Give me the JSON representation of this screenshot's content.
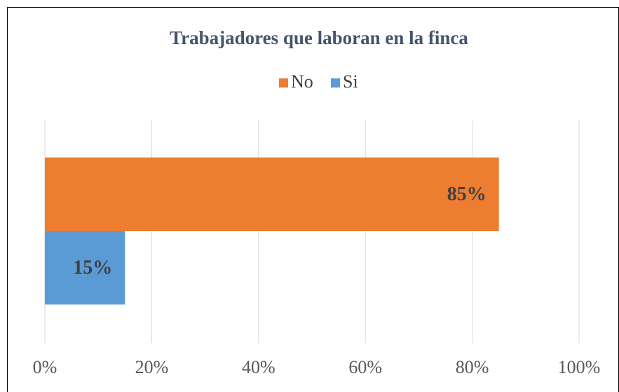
{
  "chart_data": {
    "type": "bar",
    "orientation": "horizontal",
    "title": "Trabajadores que laboran en la finca",
    "categories": [
      null
    ],
    "series": [
      {
        "name": "No",
        "color": "#ed7d31",
        "values": [
          85
        ],
        "value_labels": [
          "85%"
        ]
      },
      {
        "name": "Si",
        "color": "#5b9bd5",
        "values": [
          15
        ],
        "value_labels": [
          "15%"
        ]
      }
    ],
    "xlim": [
      0,
      100
    ],
    "xticks": [
      {
        "value": 0,
        "label": "0%"
      },
      {
        "value": 20,
        "label": "20%"
      },
      {
        "value": 40,
        "label": "40%"
      },
      {
        "value": 60,
        "label": "60%"
      },
      {
        "value": 80,
        "label": "80%"
      },
      {
        "value": 100,
        "label": "100%"
      }
    ],
    "grid": true,
    "legend": "top"
  }
}
